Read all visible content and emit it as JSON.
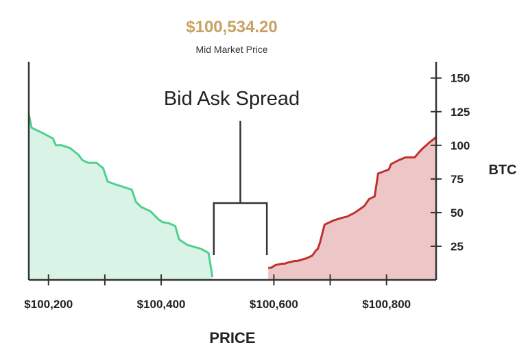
{
  "header": {
    "price": "$100,534.20",
    "price_label": "Mid Market Price"
  },
  "colors": {
    "bid_line": "#4fd08d",
    "bid_fill": "#d9f4e6",
    "ask_line": "#c0302f",
    "ask_fill": "#edc7c7",
    "price_text": "#c8a264",
    "axis": "#333333"
  },
  "chart_data": {
    "type": "area",
    "title": "",
    "annotation": "Bid Ask Spread",
    "xlabel": "PRICE",
    "ylabel": "BTC",
    "xlim": [
      100165,
      100888
    ],
    "ylim": [
      0,
      157
    ],
    "x_ticks": [
      100200,
      100400,
      100600,
      100800
    ],
    "x_tick_labels": [
      "$100,200",
      "$100,400",
      "$100,600",
      "$100,800"
    ],
    "x_minor_ticks": [
      100300,
      100700
    ],
    "y_ticks": [
      25,
      50,
      75,
      100,
      125,
      150
    ],
    "y_tick_labels": [
      "25",
      "50",
      "75",
      "100",
      "125",
      "150"
    ],
    "grid": false,
    "spread": {
      "bid_top": 100491,
      "ask_low": 100590
    },
    "series": [
      {
        "side": "bid",
        "x": [
          100165,
          100170,
          100190,
          100208,
          100213,
          100223,
          100238,
          100253,
          100260,
          100270,
          100285,
          100297,
          100305,
          100318,
          100348,
          100352,
          100355,
          100360,
          100365,
          100381,
          100388,
          100395,
          100402,
          100414,
          100425,
          100429,
          100432,
          100446,
          100471,
          100484,
          100491
        ],
        "y": [
          121,
          111,
          107,
          103,
          98,
          98,
          96,
          91,
          87,
          85,
          85,
          81,
          71,
          69,
          65,
          60,
          56,
          54,
          52,
          49,
          46,
          43,
          41,
          40,
          38,
          32,
          28,
          24,
          21,
          18,
          0
        ]
      },
      {
        "side": "ask",
        "x": [
          100590,
          100595,
          100603,
          100614,
          100619,
          100626,
          100637,
          100641,
          100658,
          100668,
          100675,
          100678,
          100682,
          100690,
          100705,
          100720,
          100730,
          100744,
          100761,
          100764,
          100769,
          100779,
          100785,
          100804,
          100808,
          100822,
          100834,
          100850,
          100858,
          100865,
          100876,
          100885,
          100888
        ],
        "y": [
          7,
          7,
          9,
          10,
          10,
          11,
          12,
          12,
          14,
          16,
          20,
          21,
          26,
          39,
          42,
          44,
          45,
          48,
          53,
          55,
          58,
          60,
          77,
          80,
          84,
          87,
          89,
          89,
          93,
          96,
          100,
          103,
          104
        ]
      }
    ]
  }
}
